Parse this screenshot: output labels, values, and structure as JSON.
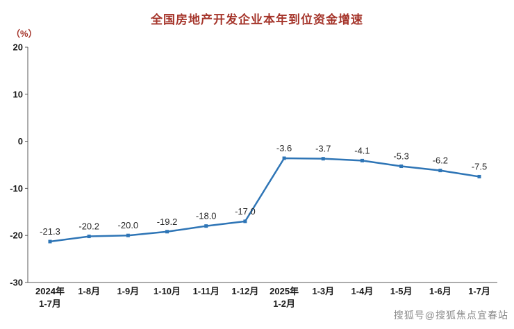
{
  "chart_data": {
    "type": "line",
    "title": "全国房地产开发企业本年到位资金增速",
    "ylabel": "（%）",
    "xlabel": "",
    "categories": [
      [
        "2024年",
        "1-7月"
      ],
      [
        "1-8月"
      ],
      [
        "1-9月"
      ],
      [
        "1-10月"
      ],
      [
        "1-11月"
      ],
      [
        "1-12月"
      ],
      [
        "2025年",
        "1-2月"
      ],
      [
        "1-3月"
      ],
      [
        "1-4月"
      ],
      [
        "1-5月"
      ],
      [
        "1-6月"
      ],
      [
        "1-7月"
      ]
    ],
    "values": [
      -21.3,
      -20.2,
      -20.0,
      -19.2,
      -18.0,
      -17.0,
      -3.6,
      -3.7,
      -4.1,
      -5.3,
      -6.2,
      -7.5
    ],
    "data_labels": [
      "-21.3",
      "-20.2",
      "-20.0",
      "-19.2",
      "-18.0",
      "-17.0",
      "-3.6",
      "-3.7",
      "-4.1",
      "-5.3",
      "-6.2",
      "-7.5"
    ],
    "ylim": [
      -30,
      20
    ],
    "yticks": [
      20,
      10,
      0,
      -10,
      -20,
      -30
    ],
    "grid": false,
    "legend": "none"
  },
  "colors": {
    "title": "#A5352B",
    "unit": "#A5352B",
    "line": "#2E75B6",
    "axis": "#595959",
    "tick_text": "#1A1A1A",
    "data_label_text": "#262626",
    "watermark": "#8C8C8C"
  },
  "watermark": {
    "text": "搜狐号@搜狐焦点宜春站"
  }
}
